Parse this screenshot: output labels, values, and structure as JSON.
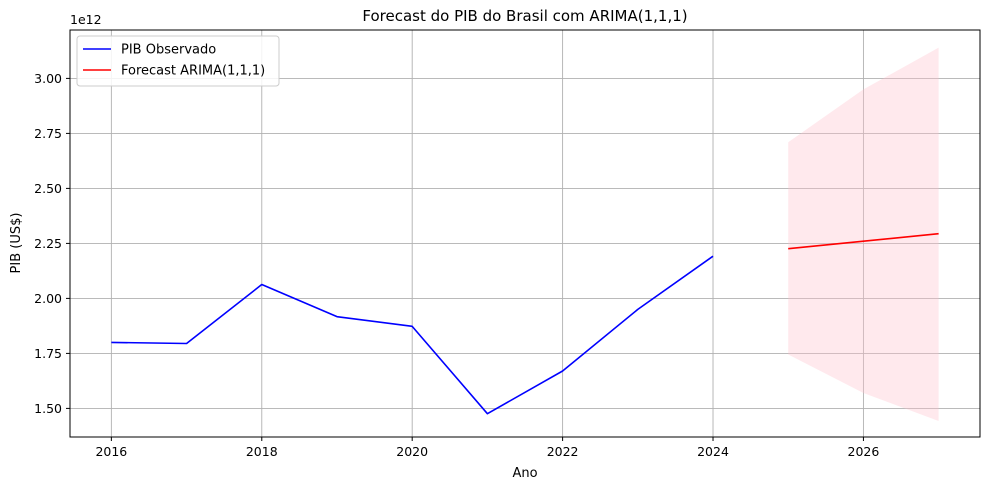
{
  "chart_data": {
    "type": "line",
    "title": "Forecast do PIB do Brasil com ARIMA(1,1,1)",
    "xlabel": "Ano",
    "ylabel": "PIB (US$)",
    "y_offset_label": "1e12",
    "y_scale_factor": 1000000000000.0,
    "xlim": [
      2015.45,
      2027.55
    ],
    "ylim": [
      1.37,
      3.22
    ],
    "xticks": [
      2016,
      2018,
      2020,
      2022,
      2024,
      2026
    ],
    "yticks": [
      1.5,
      1.75,
      2.0,
      2.25,
      2.5,
      2.75,
      3.0
    ],
    "ytick_labels": [
      "1.50",
      "1.75",
      "2.00",
      "2.25",
      "2.50",
      "2.75",
      "3.00"
    ],
    "grid": true,
    "legend_position": "top-left",
    "series": [
      {
        "name": "PIB Observado",
        "color": "#0000ff",
        "x": [
          2016,
          2017,
          2018,
          2019,
          2020,
          2021,
          2022,
          2023,
          2024
        ],
        "values": [
          1.8,
          1.795,
          2.063,
          1.917,
          1.873,
          1.476,
          1.67,
          1.95,
          2.192
        ]
      },
      {
        "name": "Forecast ARIMA(1,1,1)",
        "color": "#ff0000",
        "x": [
          2025,
          2026,
          2027
        ],
        "values": [
          2.226,
          2.26,
          2.294
        ]
      }
    ],
    "confidence_band": {
      "color": "#ffc0cb",
      "x": [
        2025,
        2026,
        2027
      ],
      "lower": [
        1.745,
        1.57,
        1.443
      ],
      "upper": [
        2.71,
        2.95,
        3.14
      ]
    }
  }
}
